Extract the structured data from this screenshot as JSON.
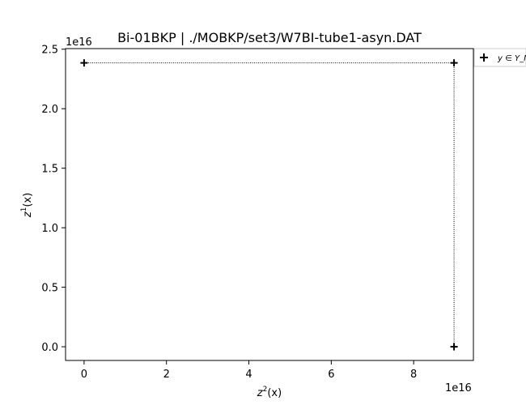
{
  "chart_data": {
    "type": "scatter",
    "title": "Bi-01BKP | ./MOBKP/set3/W7BI-tube1-asyn.DAT",
    "xlabel_base": "z",
    "xlabel_sup": "2",
    "xlabel_arg": "(x)",
    "ylabel_base": "z",
    "ylabel_sup": "1",
    "ylabel_arg": "(x)",
    "x_offset_label": "1e16",
    "y_offset_label": "1e16",
    "xlim": [
      -0.45,
      9.45
    ],
    "ylim": [
      -0.115,
      2.505
    ],
    "x_ticks": [
      0,
      2,
      4,
      6,
      8
    ],
    "x_tick_labels": [
      "0",
      "2",
      "4",
      "6",
      "8"
    ],
    "y_ticks": [
      0.0,
      0.5,
      1.0,
      1.5,
      2.0,
      2.5
    ],
    "y_tick_labels": [
      "0.0",
      "0.5",
      "1.0",
      "1.5",
      "2.0",
      "2.5"
    ],
    "grid": false,
    "legend_placement": "outside-top-right",
    "series": [
      {
        "name": "y ∈ Y_N",
        "marker": "+",
        "color": "#000000",
        "points": [
          {
            "x": 0.0,
            "y": 2.385
          },
          {
            "x": 8.98,
            "y": 2.385
          },
          {
            "x": 8.98,
            "y": 0.0
          }
        ]
      }
    ],
    "connector": {
      "style": "dotted",
      "color": "#000000",
      "path": [
        {
          "x": 0.0,
          "y": 2.385
        },
        {
          "x": 8.98,
          "y": 2.385
        },
        {
          "x": 8.98,
          "y": 0.0
        }
      ]
    }
  }
}
